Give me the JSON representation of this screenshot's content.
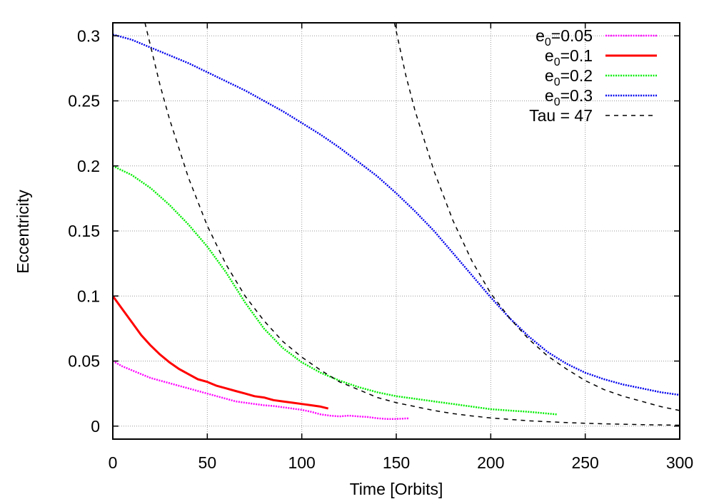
{
  "chart_data": {
    "type": "line",
    "xlabel": "Time [Orbits]",
    "ylabel": "Eccentricity",
    "xlim": [
      0,
      300
    ],
    "ylim": [
      -0.01,
      0.31
    ],
    "xticks": [
      0,
      50,
      100,
      150,
      200,
      250,
      300
    ],
    "xtick_labels": [
      "0",
      "50",
      "100",
      "150",
      "200",
      "250",
      "300"
    ],
    "yticks": [
      0,
      0.05,
      0.1,
      0.15,
      0.2,
      0.25,
      0.3
    ],
    "ytick_labels": [
      "0",
      "0.05",
      "0.1",
      "0.15",
      "0.2",
      "0.25",
      "0.3"
    ],
    "grid": true,
    "legend_position": "top-right",
    "series": [
      {
        "name": "e0=0.05",
        "legend_base": "e",
        "legend_sub": "0",
        "legend_rest": "=0.05",
        "color": "#ff00ff",
        "style": "dotted",
        "x": [
          0,
          5,
          10,
          15,
          20,
          25,
          30,
          35,
          40,
          45,
          50,
          55,
          60,
          65,
          70,
          75,
          80,
          85,
          90,
          95,
          100,
          105,
          110,
          115,
          120,
          125,
          130,
          135,
          140,
          145,
          150,
          157
        ],
        "y": [
          0.05,
          0.046,
          0.043,
          0.04,
          0.037,
          0.035,
          0.033,
          0.031,
          0.029,
          0.027,
          0.025,
          0.023,
          0.021,
          0.019,
          0.018,
          0.017,
          0.016,
          0.0155,
          0.0145,
          0.0135,
          0.0125,
          0.011,
          0.009,
          0.008,
          0.0075,
          0.008,
          0.0075,
          0.007,
          0.006,
          0.0055,
          0.0055,
          0.006
        ]
      },
      {
        "name": "e0=0.1",
        "legend_base": "e",
        "legend_sub": "0",
        "legend_rest": "=0.1",
        "color": "#ff0000",
        "style": "solid",
        "x": [
          0,
          5,
          10,
          15,
          20,
          25,
          30,
          35,
          40,
          45,
          50,
          55,
          60,
          65,
          70,
          75,
          80,
          85,
          90,
          95,
          100,
          105,
          110,
          114
        ],
        "y": [
          0.1,
          0.09,
          0.08,
          0.07,
          0.062,
          0.055,
          0.049,
          0.044,
          0.04,
          0.036,
          0.034,
          0.031,
          0.029,
          0.027,
          0.025,
          0.023,
          0.022,
          0.02,
          0.019,
          0.018,
          0.017,
          0.016,
          0.015,
          0.0135
        ]
      },
      {
        "name": "e0=0.2",
        "legend_base": "e",
        "legend_sub": "0",
        "legend_rest": "=0.2",
        "color": "#00ee00",
        "style": "dotted",
        "x": [
          0,
          10,
          20,
          30,
          40,
          50,
          60,
          70,
          80,
          90,
          100,
          110,
          120,
          130,
          140,
          150,
          160,
          170,
          180,
          190,
          200,
          210,
          220,
          235
        ],
        "y": [
          0.2,
          0.193,
          0.183,
          0.17,
          0.155,
          0.138,
          0.118,
          0.095,
          0.075,
          0.06,
          0.049,
          0.041,
          0.035,
          0.03,
          0.026,
          0.023,
          0.021,
          0.019,
          0.017,
          0.015,
          0.013,
          0.012,
          0.011,
          0.009
        ]
      },
      {
        "name": "e0=0.3",
        "legend_base": "e",
        "legend_sub": "0",
        "legend_rest": "=0.3",
        "color": "#0000ee",
        "style": "dotted",
        "x": [
          0,
          10,
          20,
          30,
          40,
          50,
          60,
          70,
          80,
          90,
          100,
          110,
          120,
          130,
          140,
          150,
          160,
          170,
          180,
          190,
          200,
          210,
          220,
          230,
          240,
          250,
          260,
          270,
          280,
          290,
          300
        ],
        "y": [
          0.301,
          0.297,
          0.291,
          0.285,
          0.279,
          0.272,
          0.265,
          0.258,
          0.25,
          0.242,
          0.233,
          0.224,
          0.214,
          0.203,
          0.192,
          0.179,
          0.165,
          0.15,
          0.133,
          0.116,
          0.099,
          0.083,
          0.069,
          0.057,
          0.048,
          0.041,
          0.036,
          0.032,
          0.029,
          0.026,
          0.024
        ]
      },
      {
        "name": "Tau = 47",
        "legend_base": "Tau = 47",
        "legend_sub": "",
        "legend_rest": "",
        "color": "#000000",
        "style": "dashed",
        "x": [
          17,
          25,
          30,
          40,
          50,
          60,
          70,
          80,
          90,
          100,
          110,
          120,
          130,
          140,
          150,
          160,
          170,
          180,
          190,
          200,
          220,
          240,
          260,
          280,
          300
        ],
        "y": [
          0.31,
          0.262,
          0.236,
          0.191,
          0.154,
          0.124,
          0.1,
          0.081,
          0.065,
          0.053,
          0.043,
          0.034,
          0.028,
          0.022,
          0.018,
          0.015,
          0.012,
          0.0096,
          0.0078,
          0.0063,
          0.0041,
          0.0027,
          0.0017,
          0.0011,
          0.0007
        ]
      },
      {
        "name": "",
        "color": "#000000",
        "style": "dashed",
        "x": [
          149,
          155,
          160,
          170,
          180,
          190,
          200,
          210,
          220,
          230,
          240,
          250,
          260,
          270,
          280,
          290,
          300
        ],
        "y": [
          0.31,
          0.27,
          0.242,
          0.196,
          0.158,
          0.127,
          0.102,
          0.083,
          0.067,
          0.054,
          0.044,
          0.035,
          0.028,
          0.023,
          0.019,
          0.015,
          0.012
        ]
      }
    ]
  }
}
